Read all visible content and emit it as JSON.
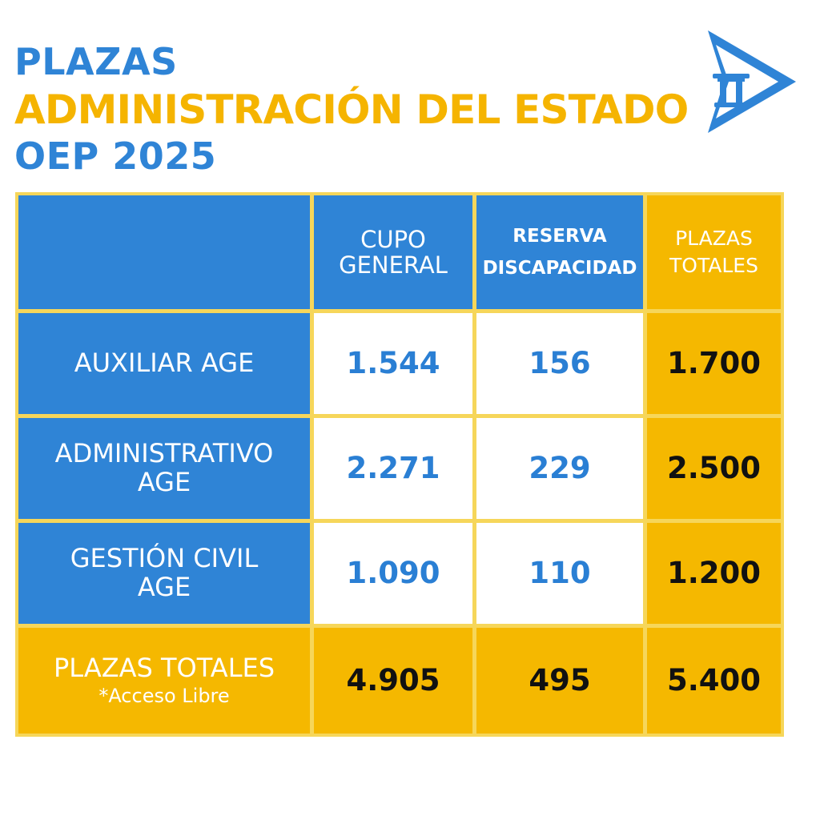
{
  "header": {
    "line1": "PLAZAS",
    "line2": "ADMINISTRACIÓN DEL ESTADO",
    "line3": "OEP 2025",
    "logo_icon": "arrow-with-pillar-icon"
  },
  "colors": {
    "blue": "#2f84d6",
    "yellow": "#f5b800",
    "white": "#ffffff",
    "border": "#f6d65a"
  },
  "table": {
    "columns": {
      "general_line1": "CUPO",
      "general_line2": "GENERAL",
      "reserva_line1": "RESERVA",
      "reserva_line2": "DISCAPACIDAD",
      "totales_line1": "PLAZAS",
      "totales_line2": "TOTALES"
    },
    "rows": [
      {
        "label_line1": "AUXILIAR AGE",
        "label_line2": "",
        "general": "1.544",
        "reserva": "156",
        "total": "1.700"
      },
      {
        "label_line1": "ADMINISTRATIVO",
        "label_line2": "AGE",
        "general": "2.271",
        "reserva": "229",
        "total": "2.500"
      },
      {
        "label_line1": "GESTIÓN CIVIL",
        "label_line2": "AGE",
        "general": "1.090",
        "reserva": "110",
        "total": "1.200"
      }
    ],
    "totals": {
      "label": "PLAZAS TOTALES",
      "note": "*Acceso Libre",
      "general": "4.905",
      "reserva": "495",
      "total": "5.400"
    }
  },
  "chart_data": {
    "type": "table",
    "columns": [
      "CUPO GENERAL",
      "RESERVA DISCAPACIDAD",
      "PLAZAS TOTALES"
    ],
    "rows": [
      {
        "name": "AUXILIAR AGE",
        "values": [
          1544,
          156,
          1700
        ]
      },
      {
        "name": "ADMINISTRATIVO AGE",
        "values": [
          2271,
          229,
          2500
        ]
      },
      {
        "name": "GESTIÓN CIVIL AGE",
        "values": [
          1090,
          110,
          1200
        ]
      },
      {
        "name": "PLAZAS TOTALES",
        "values": [
          4905,
          495,
          5400
        ]
      }
    ]
  }
}
